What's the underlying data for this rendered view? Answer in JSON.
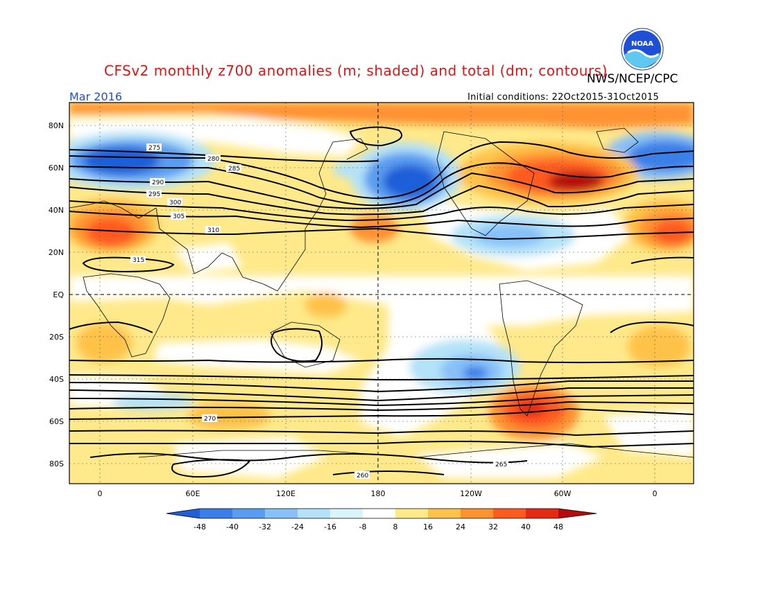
{
  "header": {
    "title": "CFSv2 monthly z700 anomalies (m; shaded) and total (dm; contours)",
    "agency": "NWS/NCEP/CPC",
    "month": "Mar 2016",
    "initial_conditions": "Initial conditions: 22Oct2015-31Oct2015",
    "logo_text": "NOAA"
  },
  "map": {
    "lat_labels": [
      "80N",
      "60N",
      "40N",
      "20N",
      "EQ",
      "20S",
      "40S",
      "60S",
      "80S"
    ],
    "lon_labels": [
      "0",
      "60E",
      "120E",
      "180",
      "120W",
      "60W",
      "0"
    ],
    "contour_labels": [
      "260",
      "265",
      "270",
      "275",
      "280",
      "285",
      "290",
      "295",
      "300",
      "305",
      "310",
      "315"
    ]
  },
  "colorbar": {
    "labels": [
      "-48",
      "-40",
      "-32",
      "-24",
      "-16",
      "-8",
      "8",
      "16",
      "24",
      "32",
      "40",
      "48"
    ],
    "colors": [
      "#1f5fd8",
      "#3a7fe8",
      "#5a9cf0",
      "#88c0f8",
      "#b4e2f8",
      "#d9f4fb",
      "#ffffff",
      "#ffe98a",
      "#ffc24a",
      "#ff9230",
      "#ff5a20",
      "#e52a14",
      "#b40c0c"
    ]
  }
}
